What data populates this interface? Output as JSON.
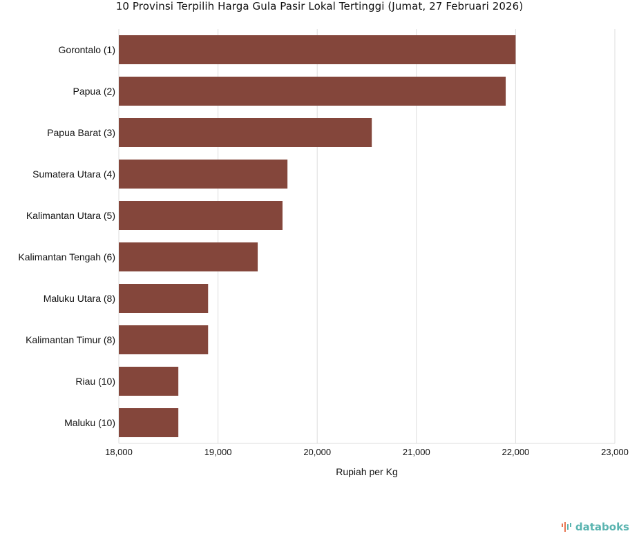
{
  "title": "10 Provinsi Terpilih Harga Gula Pasir Lokal Tertinggi (Jumat, 27 Februari 2026)",
  "brand": {
    "name": "databoks",
    "logo_icon": "databoks-logo-icon"
  },
  "colors": {
    "bar": "#84463b",
    "grid": "#dddddd",
    "brand": "#5ab4b0",
    "brand_accent": "#e8744f"
  },
  "chart_data": {
    "type": "bar",
    "orientation": "horizontal",
    "title": "10 Provinsi Terpilih Harga Gula Pasir Lokal Tertinggi (Jumat, 27 Februari 2026)",
    "categories": [
      "Gorontalo (1)",
      "Papua (2)",
      "Papua Barat (3)",
      "Sumatera Utara (4)",
      "Kalimantan Utara (5)",
      "Kalimantan Tengah (6)",
      "Maluku Utara (8)",
      "Kalimantan Timur (8)",
      "Riau (10)",
      "Maluku (10)"
    ],
    "values": [
      22000,
      21900,
      20550,
      19700,
      19650,
      19400,
      18900,
      18900,
      18600,
      18600
    ],
    "xlabel": "Rupiah per Kg",
    "ylabel": "",
    "xlim": [
      18000,
      23000
    ],
    "xticks": [
      18000,
      19000,
      20000,
      21000,
      22000,
      23000
    ],
    "xtick_labels": [
      "18,000",
      "19,000",
      "20,000",
      "21,000",
      "22,000",
      "23,000"
    ],
    "grid": true,
    "legend": "none"
  }
}
